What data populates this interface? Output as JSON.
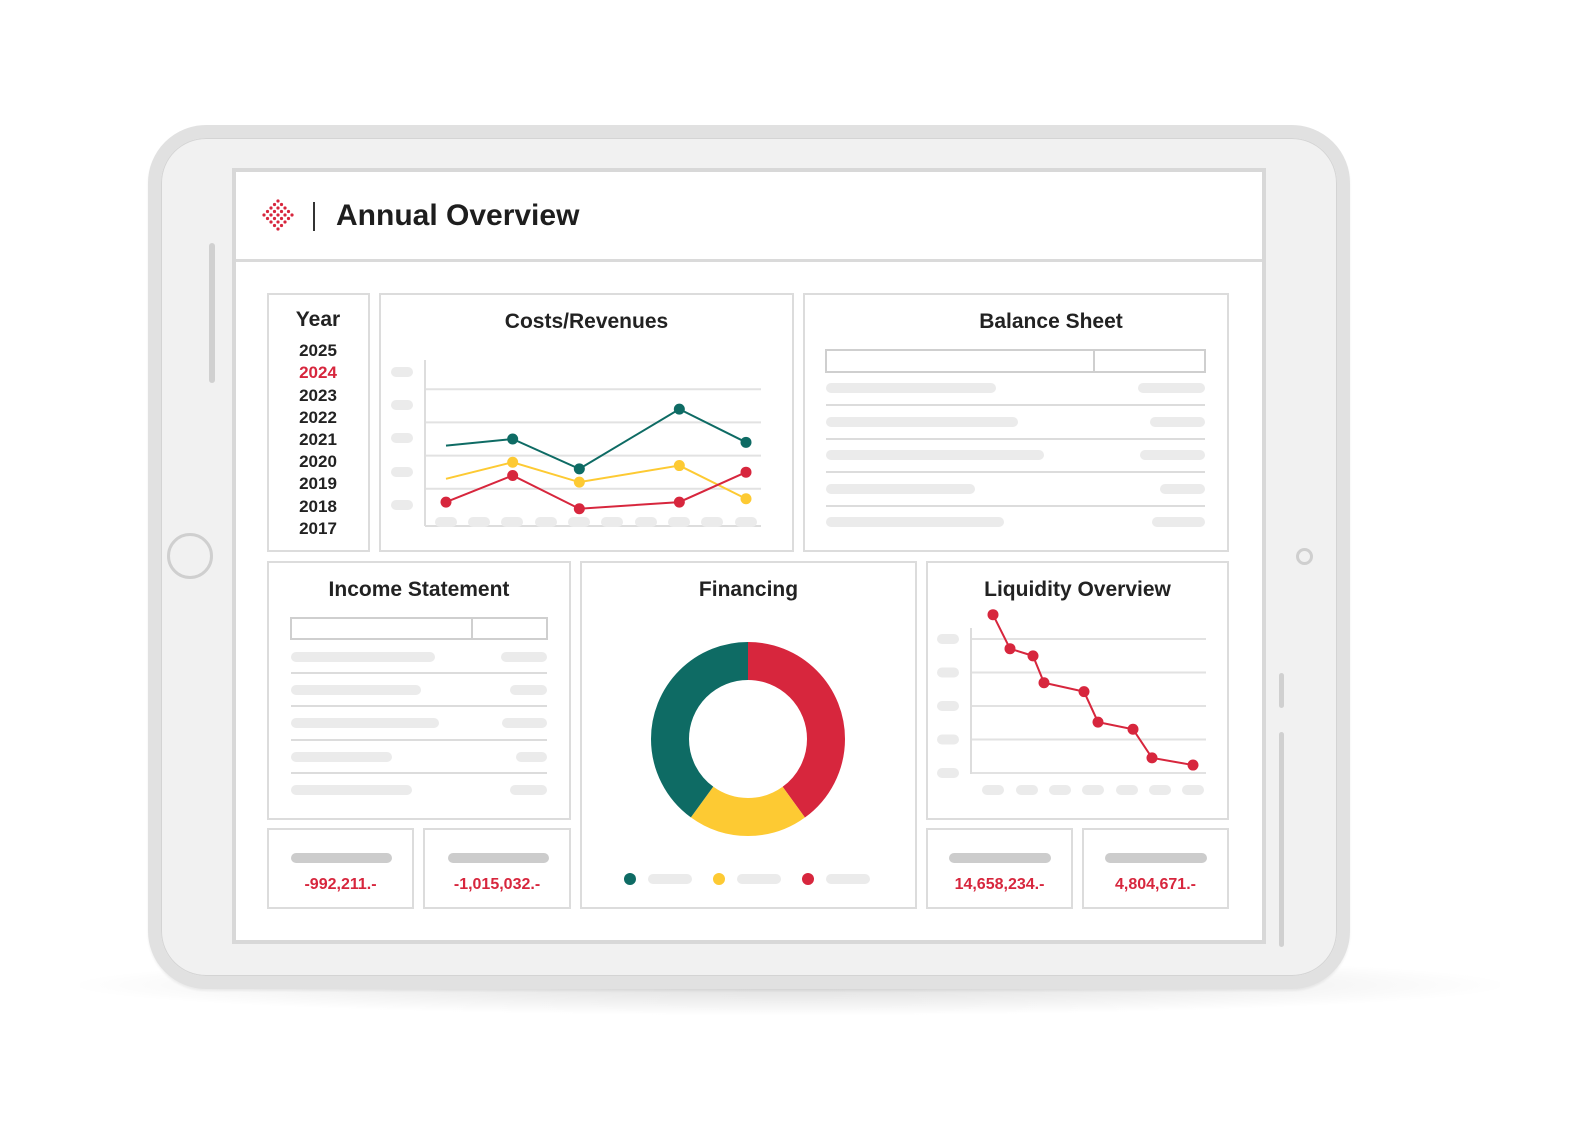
{
  "header": {
    "title": "Annual Overview",
    "logo_icon": "red-diamond-dots-logo"
  },
  "year_selector": {
    "heading": "Year",
    "years": [
      "2025",
      "2024",
      "2023",
      "2022",
      "2021",
      "2020",
      "2019",
      "2018",
      "2017"
    ],
    "selected": "2024"
  },
  "panels": {
    "costs_revenues": "Costs/Revenues",
    "balance_sheet": "Balance Sheet",
    "income_statement": "Income Statement",
    "financing": "Financing",
    "liquidity_overview": "Liquidity Overview"
  },
  "kpis": {
    "income_1": "-992,211.-",
    "income_2": "-1,015,032.-",
    "liquidity_1": "14,658,234.-",
    "liquidity_2": "4,804,671.-"
  },
  "colors": {
    "teal": "#0e6b64",
    "yellow": "#fdca33",
    "red": "#d7263d",
    "placeholder": "#ebebeb"
  },
  "chart_data": [
    {
      "type": "line",
      "title": "Costs/Revenues",
      "x": [
        1,
        2,
        3,
        4,
        5,
        6,
        7,
        8,
        9,
        10
      ],
      "ylim": [
        0,
        5
      ],
      "series": [
        {
          "color": "#0e6b64",
          "values": [
            2.3,
            null,
            2.5,
            null,
            1.6,
            null,
            null,
            3.4,
            null,
            2.4
          ],
          "markers": [
            2,
            4,
            7,
            9
          ]
        },
        {
          "color": "#fdca33",
          "values": [
            1.3,
            null,
            1.8,
            null,
            1.2,
            null,
            null,
            1.7,
            null,
            0.7
          ],
          "markers": [
            2,
            4,
            7,
            9
          ]
        },
        {
          "color": "#d7263d",
          "values": [
            0.6,
            null,
            1.4,
            null,
            0.4,
            null,
            null,
            0.6,
            null,
            1.5
          ],
          "markers": [
            0,
            2,
            4,
            7,
            9
          ]
        }
      ]
    },
    {
      "type": "pie",
      "title": "Financing",
      "donut": true,
      "slices": [
        {
          "color": "#d7263d",
          "value": 40
        },
        {
          "color": "#fdca33",
          "value": 20
        },
        {
          "color": "#0e6b64",
          "value": 40
        }
      ]
    },
    {
      "type": "line",
      "title": "Liquidity Overview",
      "x": [
        1,
        2,
        3,
        4,
        5,
        6,
        7,
        8,
        9
      ],
      "ylim": [
        0,
        5
      ],
      "series": [
        {
          "color": "#d7263d",
          "values": [
            4.45,
            3.5,
            3.3,
            2.55,
            2.3,
            1.45,
            1.25,
            0.45,
            0.25
          ]
        }
      ]
    }
  ]
}
